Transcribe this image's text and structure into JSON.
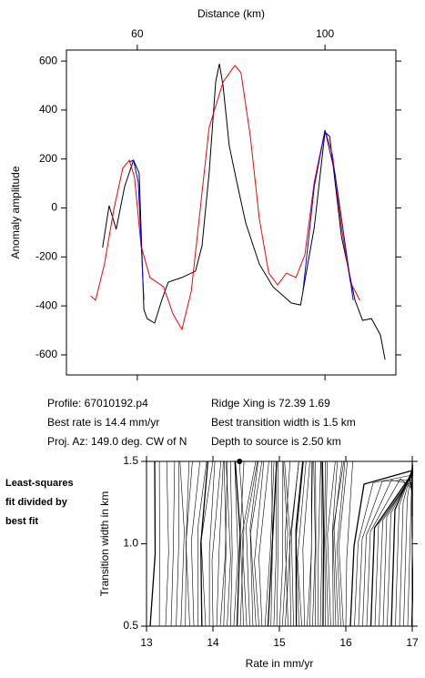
{
  "chart_data": [
    {
      "type": "line",
      "title": "Distance (km)",
      "ylabel": "Anomaly amplitude",
      "xlim": [
        44.9,
        115.1
      ],
      "xticks": [
        60,
        100
      ],
      "ylim": [
        -682,
        645
      ],
      "yticks": [
        -600,
        -400,
        -200,
        0,
        200,
        400,
        600
      ],
      "series": [
        {
          "color": "#000000",
          "x": [
            52.6,
            54.0,
            55.5,
            57.3,
            59.2,
            60.4,
            61.4,
            62.1,
            63.7,
            65.2,
            66.6,
            69.5,
            72.4,
            73.8,
            75.3,
            76.7,
            77.5,
            78.3,
            79.6,
            81.2,
            83.1,
            86.0,
            88.9,
            92.8,
            94.8,
            97.7,
            100,
            101,
            103.5,
            106.4,
            108,
            109.9,
            111.8,
            112.8
          ],
          "values": [
            -162,
            9,
            -87,
            87,
            195,
            143,
            -415,
            -452,
            -470,
            -377,
            -303,
            -284,
            -258,
            -154,
            143,
            515,
            589,
            496,
            254,
            106,
            -61,
            -229,
            -322,
            -388,
            -396,
            -80,
            310,
            292,
            -117,
            -377,
            -459,
            -452,
            -519,
            -619
          ]
        },
        {
          "color": "#ff0000",
          "x": [
            50.1,
            51.1,
            53.0,
            55.0,
            56.9,
            58.3,
            59.4,
            60.8,
            62.7,
            65.6,
            67.6,
            69.5,
            71.5,
            73.4,
            75.3,
            78.3,
            80.8,
            82.1,
            84.1,
            86.0,
            88.0,
            89.9,
            91.8,
            93.8,
            95.7,
            97.7,
            100,
            101.6,
            103.5,
            105.4,
            107.4
          ],
          "values": [
            -359,
            -377,
            -229,
            -6,
            162,
            195,
            125,
            -154,
            -284,
            -322,
            -433,
            -496,
            -340,
            -6,
            329,
            515,
            582,
            552,
            292,
            -43,
            -266,
            -314,
            -266,
            -284,
            -191,
            106,
            318,
            217,
            -80,
            -303,
            -377
          ]
        },
        {
          "color": "#0000ff",
          "x": [
            58.3,
            59.2,
            60.2,
            61.4,
            null,
            95.3,
            97.7,
            100,
            102.1,
            106.0
          ],
          "values": [
            188,
            195,
            106,
            -377,
            null,
            -340,
            87,
            318,
            143,
            -377
          ]
        }
      ]
    },
    {
      "type": "contour",
      "xlabel": "Rate in mm/yr",
      "ylabel": "Transition width in km",
      "xlim": [
        13,
        17
      ],
      "xticks": [
        13,
        14,
        15,
        16,
        17
      ],
      "ylim": [
        0.5,
        1.5
      ],
      "yticks": [
        0.5,
        {
          "value": 1,
          "label": "1.0"
        },
        1.5
      ],
      "best": {
        "x": 14.4,
        "y": 1.5
      }
    }
  ],
  "info": [
    "Profile: 67010192.p4",
    "Ridge Xing is 72.39 1.69",
    "Best rate is 14.4 mm/yr",
    "Best transition width is 1.5 km",
    "Proj. Az: 149.0 deg. CW of N",
    "Depth to source is   2.50 km"
  ],
  "note": [
    "Least-squares",
    "fit divided by",
    "best fit"
  ]
}
